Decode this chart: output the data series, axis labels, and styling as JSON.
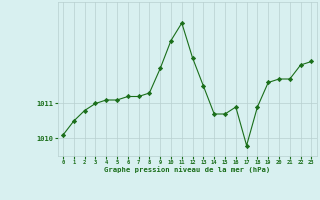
{
  "hours": [
    0,
    1,
    2,
    3,
    4,
    5,
    6,
    7,
    8,
    9,
    10,
    11,
    12,
    13,
    14,
    15,
    16,
    17,
    18,
    19,
    20,
    21,
    22,
    23
  ],
  "pressure": [
    1010.1,
    1010.5,
    1010.8,
    1011.0,
    1011.1,
    1011.1,
    1011.2,
    1011.2,
    1011.3,
    1012.0,
    1012.8,
    1013.3,
    1012.3,
    1011.5,
    1010.7,
    1010.7,
    1010.9,
    1009.8,
    1010.9,
    1011.6,
    1011.7,
    1011.7,
    1012.1,
    1012.2
  ],
  "line_color": "#1a6e1a",
  "marker": "D",
  "marker_size": 2.2,
  "bg_color": "#d8f0f0",
  "grid_color": "#b8d0d0",
  "xlabel": "Graphe pression niveau de la mer (hPa)",
  "xlabel_color": "#1a6e1a",
  "tick_color": "#1a6e1a",
  "ylim_min": 1009.5,
  "ylim_max": 1013.9,
  "ytick_labels": [
    "1010",
    "1011"
  ],
  "ytick_values": [
    1010,
    1011
  ]
}
